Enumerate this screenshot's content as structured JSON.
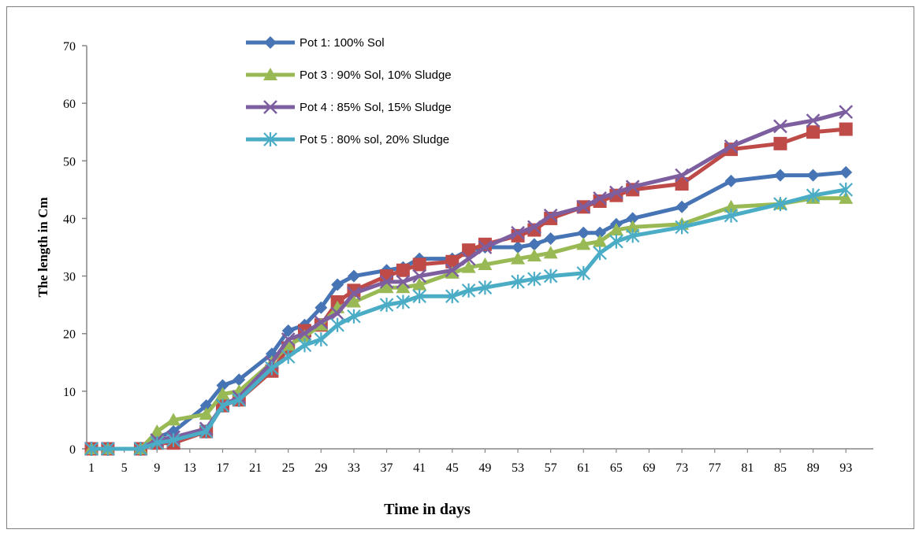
{
  "chart_data": {
    "type": "line",
    "xlabel": "Time in days",
    "ylabel": "The length in Cm",
    "ylim": [
      0,
      70
    ],
    "yticks": [
      0,
      10,
      20,
      30,
      40,
      50,
      60,
      70
    ],
    "x_tick_labels": [
      "1",
      "5",
      "9",
      "13",
      "17",
      "21",
      "25",
      "29",
      "33",
      "37",
      "41",
      "45",
      "49",
      "53",
      "57",
      "61",
      "65",
      "69",
      "73",
      "77",
      "81",
      "85",
      "89",
      "93"
    ],
    "x_range": [
      1,
      95
    ],
    "grid": false,
    "legend_position": "top-left",
    "series": [
      {
        "name": "Pot 1: 100% Sol",
        "color": "#4674b4",
        "marker": "diamond",
        "x": [
          1,
          3,
          7,
          9,
          11,
          15,
          17,
          19,
          23,
          25,
          27,
          29,
          31,
          33,
          37,
          39,
          41,
          45,
          47,
          49,
          53,
          55,
          57,
          61,
          63,
          65,
          67,
          73,
          79,
          85,
          89,
          93
        ],
        "y": [
          0,
          0,
          0,
          2,
          3,
          7.5,
          11,
          12,
          16.5,
          20.5,
          21.5,
          24.5,
          28.5,
          30,
          31,
          31.5,
          33,
          33,
          34.5,
          35,
          35,
          35.5,
          36.5,
          37.5,
          37.5,
          39,
          40,
          42,
          46.5,
          47.5,
          47.5,
          48
        ]
      },
      {
        "name": "",
        "color": "#be4b48",
        "marker": "square",
        "x": [
          1,
          3,
          7,
          9,
          11,
          15,
          17,
          19,
          23,
          25,
          27,
          29,
          31,
          33,
          37,
          39,
          41,
          45,
          47,
          49,
          53,
          55,
          57,
          61,
          63,
          65,
          67,
          73,
          79,
          85,
          89,
          93
        ],
        "y": [
          0,
          0,
          0,
          1,
          1,
          3,
          7.5,
          8.5,
          13.5,
          17.5,
          20.5,
          21.5,
          25.5,
          27.5,
          30,
          31,
          32,
          32.5,
          34.5,
          35.5,
          37,
          38,
          40,
          42,
          43,
          44,
          45,
          46,
          52,
          53,
          55,
          55.5
        ]
      },
      {
        "name": "Pot 3 : 90% Sol, 10% Sludge",
        "color": "#98b954",
        "marker": "triangle",
        "x": [
          1,
          3,
          7,
          9,
          11,
          15,
          17,
          19,
          23,
          25,
          27,
          29,
          31,
          33,
          37,
          39,
          41,
          45,
          47,
          49,
          53,
          55,
          57,
          61,
          63,
          65,
          67,
          73,
          79,
          85,
          89,
          93
        ],
        "y": [
          0,
          0,
          0,
          3,
          5,
          6,
          9.5,
          10,
          15,
          18,
          19.5,
          21.5,
          24.5,
          25.5,
          28,
          28,
          28.5,
          30.5,
          31.5,
          32,
          33,
          33.5,
          34,
          35.5,
          36,
          38,
          38.5,
          39,
          42,
          42.5,
          43.5,
          43.5
        ]
      },
      {
        "name": "Pot 4 : 85% Sol, 15% Sludge",
        "color": "#7d5fa0",
        "marker": "x",
        "x": [
          1,
          3,
          7,
          9,
          11,
          15,
          17,
          19,
          23,
          25,
          27,
          29,
          31,
          33,
          37,
          39,
          41,
          45,
          47,
          49,
          53,
          55,
          57,
          61,
          63,
          65,
          67,
          73,
          79,
          85,
          89,
          93
        ],
        "y": [
          0,
          0,
          0,
          1.5,
          2,
          3.5,
          7.5,
          9,
          15,
          19,
          20,
          22,
          23.5,
          27,
          29,
          29,
          30,
          31,
          33,
          35,
          37.5,
          38.5,
          40.5,
          42,
          43.5,
          44.5,
          45.5,
          47.5,
          52.5,
          56,
          57,
          58.5
        ]
      },
      {
        "name": "Pot 5 : 80% sol, 20% Sludge",
        "color": "#4bacc6",
        "marker": "star",
        "x": [
          1,
          3,
          7,
          9,
          11,
          15,
          17,
          19,
          23,
          25,
          27,
          29,
          31,
          33,
          37,
          39,
          41,
          45,
          47,
          49,
          53,
          55,
          57,
          61,
          63,
          65,
          67,
          73,
          79,
          85,
          89,
          93
        ],
        "y": [
          0,
          0,
          0,
          1,
          1.5,
          3,
          7.5,
          8.5,
          14,
          16,
          18,
          19,
          21.5,
          23,
          25,
          25.5,
          26.5,
          26.5,
          27.5,
          28,
          29,
          29.5,
          30,
          30.5,
          34,
          36,
          37,
          38.5,
          40.5,
          42.5,
          44,
          45
        ]
      }
    ]
  }
}
